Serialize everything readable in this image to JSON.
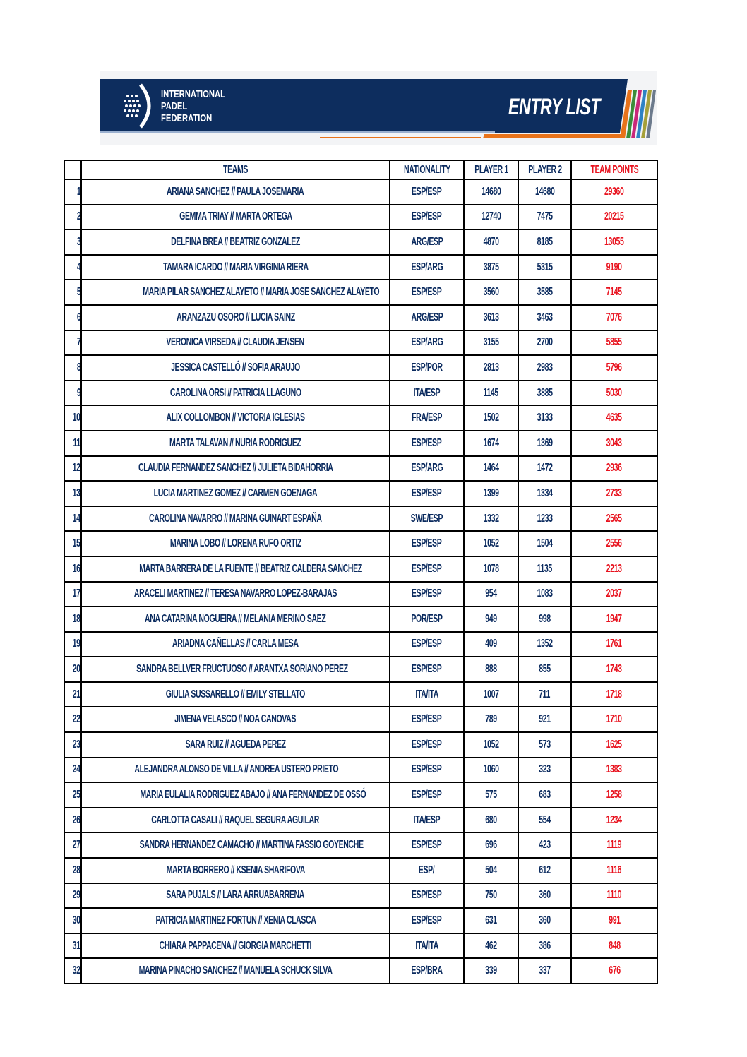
{
  "header": {
    "org_line1": "INTERNATIONAL",
    "org_line2": "PADEL",
    "org_line3": "FEDERATION",
    "title": "ENTRY LIST"
  },
  "colors": {
    "navy": "#0d2d5e",
    "orange": "#e8731a",
    "points_red": "#e8121e"
  },
  "columns": {
    "teams": "TEAMS",
    "nationality": "NATIONALITY",
    "player1": "PLAYER 1",
    "player2": "PLAYER 2",
    "team_points": "TEAM POINTS"
  },
  "rows": [
    {
      "n": "1",
      "team": "ARIANA SANCHEZ // PAULA JOSEMARIA",
      "nat": "ESP/ESP",
      "p1": "14680",
      "p2": "14680",
      "pts": "29360"
    },
    {
      "n": "2",
      "team": "GEMMA TRIAY // MARTA ORTEGA",
      "nat": "ESP/ESP",
      "p1": "12740",
      "p2": "7475",
      "pts": "20215"
    },
    {
      "n": "3",
      "team": "DELFINA BREA // BEATRIZ GONZALEZ",
      "nat": "ARG/ESP",
      "p1": "4870",
      "p2": "8185",
      "pts": "13055"
    },
    {
      "n": "4",
      "team": "TAMARA ICARDO // MARIA VIRGINIA RIERA",
      "nat": "ESP/ARG",
      "p1": "3875",
      "p2": "5315",
      "pts": "9190"
    },
    {
      "n": "5",
      "team": "MARIA PILAR SANCHEZ ALAYETO // MARIA JOSE SANCHEZ ALAYETO",
      "nat": "ESP/ESP",
      "p1": "3560",
      "p2": "3585",
      "pts": "7145"
    },
    {
      "n": "6",
      "team": "ARANZAZU OSORO // LUCIA SAINZ",
      "nat": "ARG/ESP",
      "p1": "3613",
      "p2": "3463",
      "pts": "7076"
    },
    {
      "n": "7",
      "team": "VERONICA VIRSEDA // CLAUDIA JENSEN",
      "nat": "ESP/ARG",
      "p1": "3155",
      "p2": "2700",
      "pts": "5855"
    },
    {
      "n": "8",
      "team": "JESSICA CASTELLÓ // SOFIA ARAUJO",
      "nat": "ESP/POR",
      "p1": "2813",
      "p2": "2983",
      "pts": "5796"
    },
    {
      "n": "9",
      "team": "CAROLINA ORSI // PATRICIA LLAGUNO",
      "nat": "ITA/ESP",
      "p1": "1145",
      "p2": "3885",
      "pts": "5030"
    },
    {
      "n": "10",
      "team": "ALIX COLLOMBON // VICTORIA IGLESIAS",
      "nat": "FRA/ESP",
      "p1": "1502",
      "p2": "3133",
      "pts": "4635"
    },
    {
      "n": "11",
      "team": "MARTA TALAVAN // NURIA RODRIGUEZ",
      "nat": "ESP/ESP",
      "p1": "1674",
      "p2": "1369",
      "pts": "3043"
    },
    {
      "n": "12",
      "team": "CLAUDIA FERNANDEZ SANCHEZ // JULIETA BIDAHORRIA",
      "nat": "ESP/ARG",
      "p1": "1464",
      "p2": "1472",
      "pts": "2936"
    },
    {
      "n": "13",
      "team": "LUCIA MARTINEZ GOMEZ // CARMEN GOENAGA",
      "nat": "ESP/ESP",
      "p1": "1399",
      "p2": "1334",
      "pts": "2733"
    },
    {
      "n": "14",
      "team": "CAROLINA NAVARRO // MARINA GUINART ESPAÑA",
      "nat": "SWE/ESP",
      "p1": "1332",
      "p2": "1233",
      "pts": "2565"
    },
    {
      "n": "15",
      "team": "MARINA LOBO // LORENA RUFO ORTIZ",
      "nat": "ESP/ESP",
      "p1": "1052",
      "p2": "1504",
      "pts": "2556"
    },
    {
      "n": "16",
      "team": "MARTA BARRERA DE LA FUENTE // BEATRIZ CALDERA SANCHEZ",
      "nat": "ESP/ESP",
      "p1": "1078",
      "p2": "1135",
      "pts": "2213"
    },
    {
      "n": "17",
      "team": "ARACELI MARTINEZ // TERESA NAVARRO LOPEZ-BARAJAS",
      "nat": "ESP/ESP",
      "p1": "954",
      "p2": "1083",
      "pts": "2037"
    },
    {
      "n": "18",
      "team": "ANA CATARINA NOGUEIRA // MELANIA MERINO SAEZ",
      "nat": "POR/ESP",
      "p1": "949",
      "p2": "998",
      "pts": "1947"
    },
    {
      "n": "19",
      "team": "ARIADNA CAÑELLAS // CARLA MESA",
      "nat": "ESP/ESP",
      "p1": "409",
      "p2": "1352",
      "pts": "1761"
    },
    {
      "n": "20",
      "team": "SANDRA BELLVER FRUCTUOSO // ARANTXA SORIANO PEREZ",
      "nat": "ESP/ESP",
      "p1": "888",
      "p2": "855",
      "pts": "1743"
    },
    {
      "n": "21",
      "team": "GIULIA SUSSARELLO // EMILY STELLATO",
      "nat": "ITA/ITA",
      "p1": "1007",
      "p2": "711",
      "pts": "1718"
    },
    {
      "n": "22",
      "team": "JIMENA VELASCO // NOA CANOVAS",
      "nat": "ESP/ESP",
      "p1": "789",
      "p2": "921",
      "pts": "1710"
    },
    {
      "n": "23",
      "team": "SARA RUIZ // AGUEDA PEREZ",
      "nat": "ESP/ESP",
      "p1": "1052",
      "p2": "573",
      "pts": "1625"
    },
    {
      "n": "24",
      "team": "ALEJANDRA ALONSO DE VILLA // ANDREA USTERO PRIETO",
      "nat": "ESP/ESP",
      "p1": "1060",
      "p2": "323",
      "pts": "1383"
    },
    {
      "n": "25",
      "team": "MARIA EULALIA RODRIGUEZ ABAJO // ANA FERNANDEZ DE OSSÓ",
      "nat": "ESP/ESP",
      "p1": "575",
      "p2": "683",
      "pts": "1258"
    },
    {
      "n": "26",
      "team": "CARLOTTA CASALI // RAQUEL SEGURA AGUILAR",
      "nat": "ITA/ESP",
      "p1": "680",
      "p2": "554",
      "pts": "1234"
    },
    {
      "n": "27",
      "team": "SANDRA HERNANDEZ CAMACHO // MARTINA FASSIO GOYENCHE",
      "nat": "ESP/ESP",
      "p1": "696",
      "p2": "423",
      "pts": "1119"
    },
    {
      "n": "28",
      "team": "MARTA BORRERO // KSENIA SHARIFOVA",
      "nat": "ESP/",
      "p1": "504",
      "p2": "612",
      "pts": "1116"
    },
    {
      "n": "29",
      "team": "SARA PUJALS // LARA ARRUABARRENA",
      "nat": "ESP/ESP",
      "p1": "750",
      "p2": "360",
      "pts": "1110"
    },
    {
      "n": "30",
      "team": "PATRICIA MARTINEZ FORTUN // XENIA CLASCA",
      "nat": "ESP/ESP",
      "p1": "631",
      "p2": "360",
      "pts": "991"
    },
    {
      "n": "31",
      "team": "CHIARA PAPPACENA // GIORGIA MARCHETTI",
      "nat": "ITA/ITA",
      "p1": "462",
      "p2": "386",
      "pts": "848"
    },
    {
      "n": "32",
      "team": "MARINA PINACHO SANCHEZ // MANUELA SCHUCK SILVA",
      "nat": "ESP/BRA",
      "p1": "339",
      "p2": "337",
      "pts": "676"
    }
  ]
}
